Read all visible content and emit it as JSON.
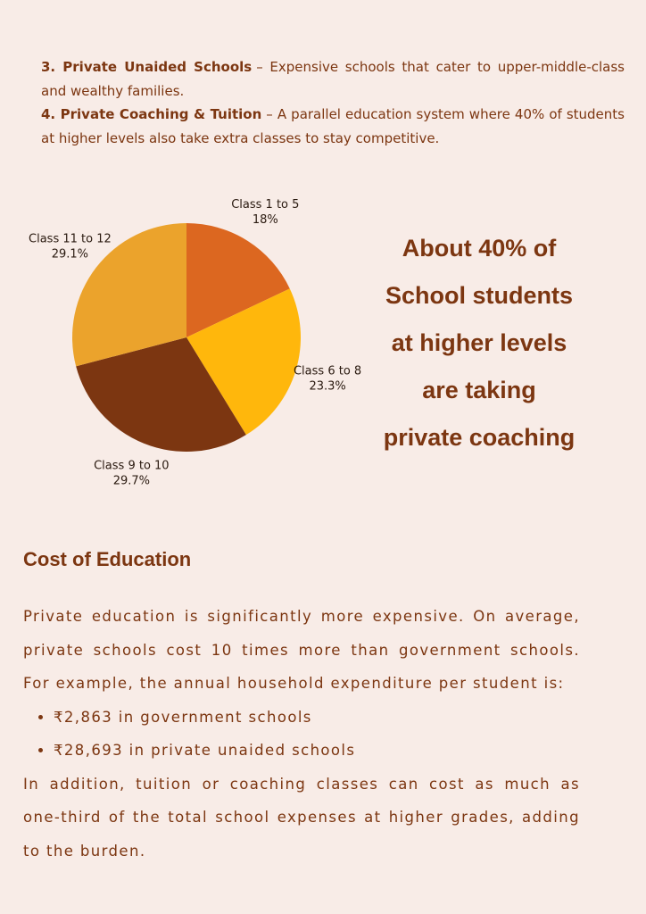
{
  "intro_list": [
    {
      "label": "3. Private Unaided Schools",
      "text": "– Expensive schools that cater to upper-middle-class and wealthy families."
    },
    {
      "label": "4. Private Coaching & Tuition",
      "text": "– A parallel education system where 40% of students at higher levels also take extra classes to stay competitive."
    }
  ],
  "chart_data": {
    "type": "pie",
    "categories": [
      "Class 1 to 5",
      "Class 6 to 8",
      "Class 9 to 10",
      "Class 11 to 12"
    ],
    "values": [
      18,
      23.3,
      29.7,
      29.1
    ],
    "value_labels": [
      "18%",
      "23.3%",
      "29.7%",
      "29.1%"
    ],
    "colors": [
      "#dc6720",
      "#ffb70c",
      "#7c3611",
      "#eba32c"
    ]
  },
  "callout": [
    "About 40% of",
    "School students",
    "at higher levels",
    "are taking",
    "private coaching"
  ],
  "section": {
    "heading": "Cost of Education",
    "paragraph1": "Private education is significantly more expensive. On average, private schools cost 10 times more than government schools. For example, the annual household expenditure per student is:",
    "bullets": [
      "₹2,863 in government schools",
      "₹28,693 in private unaided schools"
    ],
    "paragraph2": "In addition, tuition or coaching classes can cost as much as one-third of the total school expenses at higher grades, adding to the burden."
  }
}
